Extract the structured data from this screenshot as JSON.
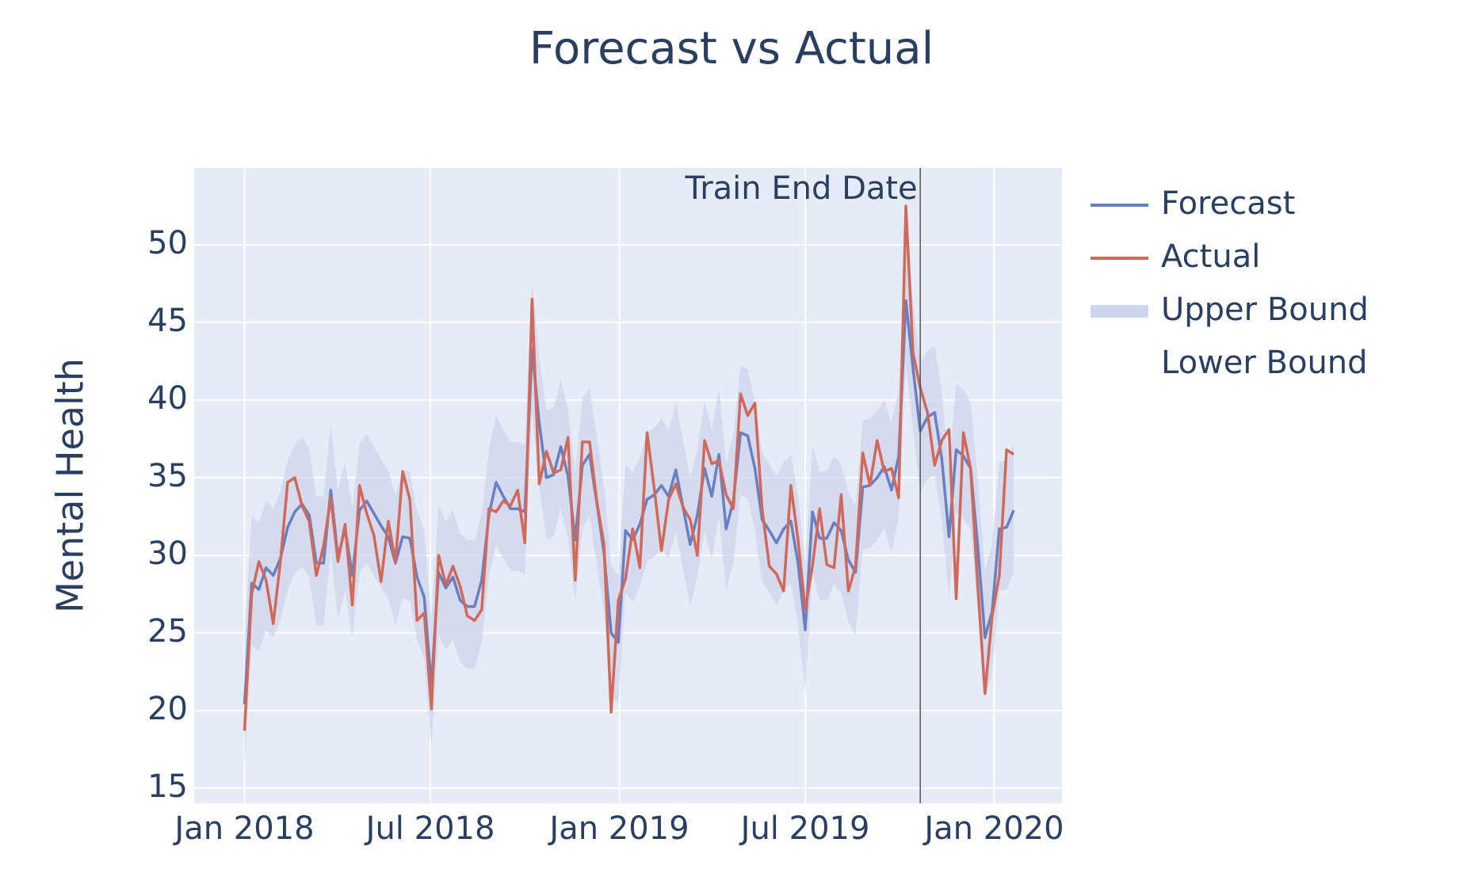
{
  "chart_data": {
    "type": "line",
    "title": "Forecast vs Actual",
    "ylabel": "Mental Health",
    "x": [
      "2018-01-01",
      "2018-01-08",
      "2018-01-15",
      "2018-01-22",
      "2018-01-29",
      "2018-02-05",
      "2018-02-12",
      "2018-02-19",
      "2018-02-26",
      "2018-03-05",
      "2018-03-12",
      "2018-03-19",
      "2018-03-26",
      "2018-04-02",
      "2018-04-09",
      "2018-04-16",
      "2018-04-23",
      "2018-04-30",
      "2018-05-07",
      "2018-05-14",
      "2018-05-21",
      "2018-05-28",
      "2018-06-04",
      "2018-06-11",
      "2018-06-18",
      "2018-06-25",
      "2018-07-02",
      "2018-07-09",
      "2018-07-16",
      "2018-07-23",
      "2018-07-30",
      "2018-08-06",
      "2018-08-13",
      "2018-08-20",
      "2018-08-27",
      "2018-09-03",
      "2018-09-10",
      "2018-09-17",
      "2018-09-24",
      "2018-10-01",
      "2018-10-08",
      "2018-10-15",
      "2018-10-22",
      "2018-10-29",
      "2018-11-05",
      "2018-11-12",
      "2018-11-19",
      "2018-11-26",
      "2018-12-03",
      "2018-12-10",
      "2018-12-17",
      "2018-12-24",
      "2018-12-31",
      "2019-01-07",
      "2019-01-14",
      "2019-01-21",
      "2019-01-28",
      "2019-02-04",
      "2019-02-11",
      "2019-02-18",
      "2019-02-25",
      "2019-03-04",
      "2019-03-11",
      "2019-03-18",
      "2019-03-25",
      "2019-04-01",
      "2019-04-08",
      "2019-04-15",
      "2019-04-22",
      "2019-04-29",
      "2019-05-06",
      "2019-05-13",
      "2019-05-20",
      "2019-05-27",
      "2019-06-03",
      "2019-06-10",
      "2019-06-17",
      "2019-06-24",
      "2019-07-01",
      "2019-07-08",
      "2019-07-15",
      "2019-07-22",
      "2019-07-29",
      "2019-08-05",
      "2019-08-12",
      "2019-08-19",
      "2019-08-26",
      "2019-09-02",
      "2019-09-09",
      "2019-09-16",
      "2019-09-23",
      "2019-09-30",
      "2019-10-07",
      "2019-10-14",
      "2019-10-21",
      "2019-10-28",
      "2019-11-04",
      "2019-11-11",
      "2019-11-18",
      "2019-11-25",
      "2019-12-02",
      "2019-12-09",
      "2019-12-16",
      "2019-12-23",
      "2019-12-30",
      "2020-01-06",
      "2020-01-13",
      "2020-01-20"
    ],
    "series": [
      {
        "name": "Forecast",
        "color": "#6a7fc1",
        "values": [
          20.4,
          28.2,
          27.8,
          29.2,
          28.7,
          29.8,
          31.8,
          32.8,
          33.3,
          32.6,
          29.5,
          29.5,
          34.2,
          29.9,
          31.7,
          28.7,
          32.9,
          33.5,
          32.7,
          31.9,
          31.2,
          29.5,
          31.2,
          31.1,
          28.6,
          27.3,
          21.6,
          28.9,
          27.9,
          28.6,
          27.1,
          26.7,
          26.7,
          28.4,
          32.6,
          34.7,
          33.8,
          33.0,
          33.0,
          32.8,
          43.3,
          38.5,
          35.0,
          35.2,
          37.0,
          35.1,
          31.0,
          35.8,
          36.5,
          33.4,
          30.2,
          25.0,
          24.4,
          31.6,
          31.0,
          32.0,
          33.6,
          33.9,
          34.5,
          33.8,
          35.5,
          33.1,
          30.7,
          32.6,
          35.6,
          33.8,
          36.5,
          31.7,
          33.5,
          37.9,
          37.7,
          35.6,
          32.3,
          31.6,
          30.8,
          31.7,
          32.2,
          29.5,
          25.2,
          32.8,
          31.1,
          31.1,
          32.1,
          31.6,
          29.7,
          28.9,
          34.4,
          34.5,
          35.0,
          35.7,
          34.2,
          36.4,
          46.4,
          42.0,
          38.0,
          38.9,
          39.2,
          36.2,
          31.2,
          36.8,
          36.4,
          35.6,
          30.6,
          24.7,
          26.4,
          31.7,
          31.8,
          32.9
        ]
      },
      {
        "name": "Actual",
        "color": "#d1695a",
        "values": [
          18.7,
          27.5,
          29.6,
          28.4,
          25.6,
          29.6,
          34.7,
          35.0,
          33.2,
          32.2,
          28.7,
          30.6,
          33.7,
          29.6,
          32.0,
          26.8,
          34.5,
          32.7,
          31.3,
          28.3,
          32.2,
          29.6,
          35.4,
          33.6,
          25.8,
          26.3,
          20.1,
          30.0,
          28.1,
          29.3,
          28.0,
          26.1,
          25.8,
          26.5,
          33.0,
          32.8,
          33.5,
          33.2,
          34.2,
          30.8,
          46.5,
          34.6,
          36.7,
          35.3,
          35.5,
          37.6,
          28.4,
          37.3,
          37.3,
          33.5,
          30.7,
          19.9,
          27.1,
          28.5,
          31.7,
          29.2,
          37.9,
          34.3,
          30.3,
          33.6,
          34.6,
          33.1,
          32.3,
          30.0,
          37.4,
          35.9,
          36.1,
          33.9,
          33.0,
          40.4,
          39.0,
          39.8,
          33.0,
          29.3,
          28.8,
          27.7,
          34.5,
          31.0,
          26.5,
          29.3,
          33.0,
          29.4,
          29.2,
          33.9,
          27.7,
          29.3,
          36.6,
          34.5,
          37.4,
          35.4,
          35.6,
          33.7,
          52.5,
          43.0,
          40.8,
          39.2,
          35.8,
          37.4,
          38.1,
          27.2,
          37.9,
          35.6,
          28.0,
          21.1,
          26.1,
          28.7,
          36.8,
          36.5
        ]
      },
      {
        "name": "Upper Bound",
        "color": "#cdd6ec",
        "values": [
          24.7,
          32.5,
          32.1,
          33.5,
          33.0,
          34.1,
          36.1,
          37.1,
          37.6,
          36.9,
          33.8,
          33.8,
          38.5,
          34.2,
          36.0,
          33.0,
          37.2,
          37.8,
          37.0,
          36.2,
          35.5,
          33.8,
          35.5,
          35.4,
          32.9,
          31.6,
          25.9,
          33.2,
          32.2,
          32.9,
          31.4,
          31.0,
          31.0,
          32.7,
          36.9,
          39.0,
          38.1,
          37.3,
          37.3,
          37.1,
          47.6,
          42.8,
          39.3,
          39.5,
          41.3,
          39.4,
          35.3,
          40.1,
          40.8,
          37.7,
          34.5,
          29.3,
          28.7,
          35.9,
          35.3,
          36.3,
          37.9,
          38.2,
          38.8,
          38.1,
          39.8,
          37.4,
          35.0,
          36.9,
          39.9,
          38.1,
          40.8,
          36.0,
          37.8,
          42.2,
          42.0,
          39.9,
          36.6,
          35.9,
          35.1,
          36.0,
          36.5,
          33.8,
          29.5,
          37.1,
          35.4,
          35.4,
          36.4,
          35.9,
          34.0,
          33.2,
          38.7,
          38.8,
          39.3,
          40.0,
          38.5,
          40.7,
          50.7,
          46.3,
          42.3,
          43.2,
          43.5,
          40.5,
          35.5,
          41.1,
          40.7,
          39.9,
          34.9,
          29.0,
          30.7,
          36.0,
          36.1,
          37.2
        ]
      },
      {
        "name": "Lower Bound",
        "values": [
          16.4,
          24.2,
          23.8,
          25.2,
          24.7,
          25.8,
          27.8,
          28.8,
          29.3,
          28.6,
          25.5,
          25.5,
          30.2,
          25.9,
          27.7,
          24.7,
          28.9,
          29.5,
          28.7,
          27.9,
          27.2,
          25.5,
          27.2,
          27.1,
          24.6,
          23.3,
          17.6,
          24.9,
          23.9,
          24.6,
          23.1,
          22.7,
          22.7,
          24.4,
          28.6,
          30.7,
          29.8,
          29.0,
          29.0,
          28.8,
          39.3,
          34.5,
          31.0,
          31.2,
          33.0,
          31.1,
          27.0,
          31.8,
          32.5,
          29.4,
          26.2,
          21.0,
          20.4,
          27.6,
          27.0,
          28.0,
          29.6,
          29.9,
          30.5,
          29.8,
          31.5,
          29.1,
          26.7,
          28.6,
          31.6,
          29.8,
          32.5,
          27.7,
          29.5,
          33.9,
          33.7,
          31.6,
          28.3,
          27.6,
          26.8,
          27.7,
          28.2,
          25.5,
          21.2,
          28.8,
          27.1,
          27.1,
          28.1,
          27.6,
          25.7,
          24.9,
          30.4,
          30.5,
          31.0,
          31.7,
          30.2,
          32.4,
          42.4,
          38.0,
          34.0,
          34.9,
          35.2,
          32.2,
          27.2,
          32.8,
          32.4,
          31.6,
          26.6,
          20.7,
          22.4,
          27.7,
          27.8,
          28.9
        ]
      }
    ],
    "xlim": [
      "2017-11-13",
      "2020-03-07"
    ],
    "xticks": [
      {
        "value": "2018-01-01",
        "label": "Jan 2018"
      },
      {
        "value": "2018-07-01",
        "label": "Jul 2018"
      },
      {
        "value": "2019-01-01",
        "label": "Jan 2019"
      },
      {
        "value": "2019-07-01",
        "label": "Jul 2019"
      },
      {
        "value": "2020-01-01",
        "label": "Jan 2020"
      }
    ],
    "ylim": [
      14.03,
      54.95
    ],
    "yticks": [
      15,
      20,
      25,
      30,
      35,
      40,
      45,
      50
    ],
    "grid": true,
    "annotations": [
      {
        "text": "Train End Date",
        "x": "2019-10-21"
      }
    ],
    "legend": "right"
  }
}
